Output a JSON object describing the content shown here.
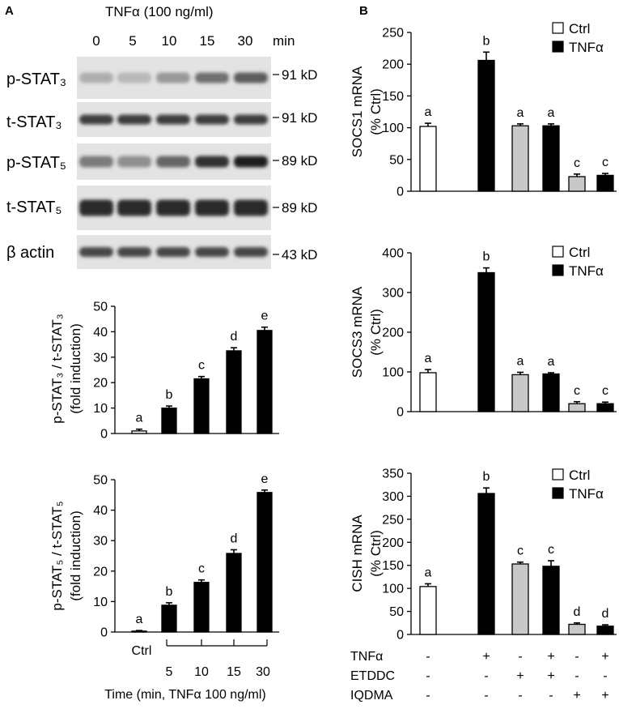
{
  "panel_a": {
    "label": "A",
    "treatment_header": "TNFα (100 ng/ml)",
    "lanes": [
      "0",
      "5",
      "10",
      "15",
      "30"
    ],
    "lane_unit": "min",
    "blots": [
      {
        "label": "p-STAT₃",
        "size": "91 kD",
        "intensity": [
          0.25,
          0.2,
          0.35,
          0.55,
          0.65
        ]
      },
      {
        "label": "t-STAT₃",
        "size": "91 kD",
        "intensity": [
          0.8,
          0.8,
          0.8,
          0.8,
          0.8
        ]
      },
      {
        "label": "p-STAT₅",
        "size": "89 kD",
        "intensity": [
          0.5,
          0.4,
          0.6,
          0.85,
          0.95
        ]
      },
      {
        "label": "t-STAT₅",
        "size": "89 kD",
        "intensity": [
          0.9,
          0.9,
          0.9,
          0.9,
          0.9
        ]
      },
      {
        "label": "β actin",
        "size": "43 kD",
        "intensity": [
          0.75,
          0.75,
          0.75,
          0.75,
          0.75
        ]
      }
    ]
  },
  "panel_b": {
    "label": "B"
  },
  "chart_data": [
    {
      "type": "bar",
      "categories": [
        "Ctrl",
        "5",
        "10",
        "15",
        "30"
      ],
      "xlabel": "Time (min, TNFα 100 ng/ml)",
      "fills": [
        "#ffffff",
        "#000000",
        "#000000",
        "#000000",
        "#000000"
      ],
      "subplots": [
        {
          "ylabel": [
            "p-STAT₃ / t-STAT₃",
            "(fold induction)"
          ],
          "values": [
            1,
            10,
            21.5,
            32.5,
            40.5
          ],
          "errors": [
            0.7,
            0.8,
            0.9,
            1.2,
            1.3
          ],
          "letters": [
            "a",
            "b",
            "c",
            "d",
            "e"
          ],
          "ylim": [
            0,
            50
          ],
          "yticks": [
            0,
            10,
            20,
            30,
            40,
            50
          ]
        },
        {
          "ylabel": [
            "p-STAT₅ / t-STAT₅",
            "(fold induction)"
          ],
          "values": [
            0.3,
            8.8,
            16.3,
            25.8,
            45.8
          ],
          "errors": [
            0.2,
            0.8,
            0.8,
            1.2,
            0.8
          ],
          "letters": [
            "a",
            "b",
            "c",
            "d",
            "e"
          ],
          "ylim": [
            0,
            50
          ],
          "yticks": [
            0,
            10,
            20,
            30,
            40,
            50
          ]
        }
      ]
    },
    {
      "type": "bar",
      "legend": [
        {
          "name": "Ctrl",
          "color": "#ffffff"
        },
        {
          "name": "TNFα",
          "color": "#000000"
        }
      ],
      "fills": [
        "#ffffff",
        "#000000",
        "#c8c8c8",
        "#000000",
        "#c8c8c8",
        "#000000"
      ],
      "conditions": [
        {
          "label": "TNFα",
          "signs": [
            "-",
            "+",
            "-",
            "+",
            "-",
            "+"
          ]
        },
        {
          "label": "ETDDC",
          "signs": [
            "-",
            "-",
            "+",
            "+",
            "-",
            "-"
          ]
        },
        {
          "label": "IQDMA",
          "signs": [
            "-",
            "-",
            "-",
            "-",
            "+",
            "+"
          ]
        }
      ],
      "subplots": [
        {
          "ylabel": [
            "SOCS1 mRNA",
            "(% Ctrl)"
          ],
          "values": [
            102,
            206,
            103,
            103,
            23,
            25
          ],
          "errors": [
            5,
            13,
            3,
            3,
            4,
            3
          ],
          "letters": [
            "a",
            "b",
            "a",
            "a",
            "c",
            "c"
          ],
          "ylim": [
            0,
            250
          ],
          "yticks": [
            0,
            50,
            100,
            150,
            200,
            250
          ]
        },
        {
          "ylabel": [
            "SOCS3 mRNA",
            "(% Ctrl)"
          ],
          "values": [
            98,
            350,
            93,
            95,
            20,
            20
          ],
          "errors": [
            8,
            12,
            6,
            3,
            5,
            4
          ],
          "letters": [
            "a",
            "b",
            "a",
            "a",
            "c",
            "c"
          ],
          "ylim": [
            0,
            400
          ],
          "yticks": [
            0,
            100,
            200,
            300,
            400
          ]
        },
        {
          "ylabel": [
            "CISH mRNA",
            "(% Ctrl)"
          ],
          "values": [
            104,
            306,
            153,
            148,
            22,
            18
          ],
          "errors": [
            6,
            12,
            4,
            12,
            3,
            3
          ],
          "letters": [
            "a",
            "b",
            "c",
            "c",
            "d",
            "d"
          ],
          "ylim": [
            0,
            350
          ],
          "yticks": [
            0,
            50,
            100,
            150,
            200,
            250,
            300,
            350
          ]
        }
      ]
    }
  ]
}
